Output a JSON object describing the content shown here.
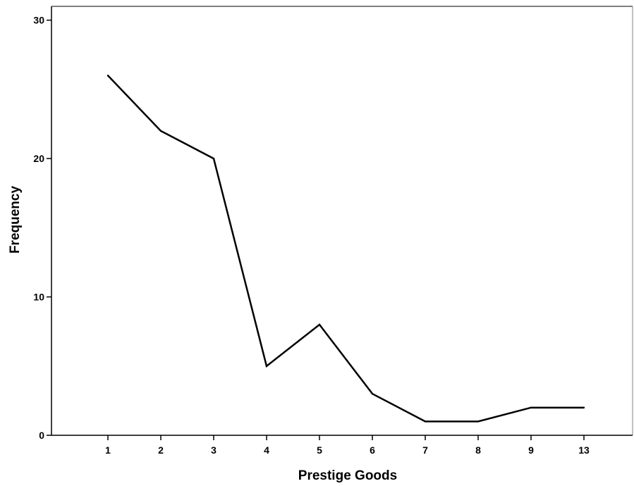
{
  "chart_data": {
    "type": "line",
    "xlabel": "Prestige Goods",
    "ylabel": "Frequency",
    "categories": [
      "1",
      "2",
      "3",
      "4",
      "5",
      "6",
      "7",
      "8",
      "9",
      "13"
    ],
    "series": [
      {
        "values": [
          26,
          22,
          20,
          5,
          8,
          3,
          1,
          1,
          2,
          2
        ]
      }
    ],
    "ylim": [
      0,
      31
    ],
    "yticks": [
      0,
      10,
      20,
      30
    ],
    "grid": false,
    "legend": "none",
    "colors": {
      "line": "#000000",
      "axis": "#000000",
      "frame": "#808080"
    }
  }
}
